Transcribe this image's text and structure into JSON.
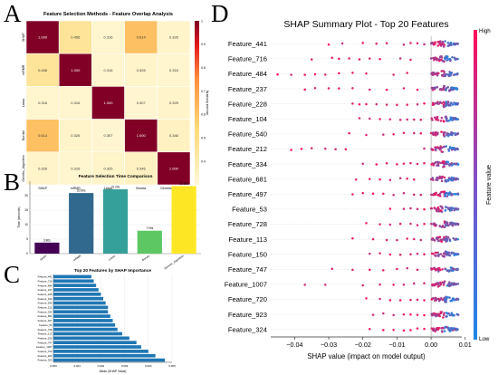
{
  "panel_letters": [
    "A",
    "B",
    "C",
    "D"
  ],
  "chart_data": [
    {
      "panel": "A",
      "type": "heatmap",
      "title": "Feature Selection Methods - Feature Overlap Analysis",
      "labels": [
        "SHAP",
        "mRMR",
        "Lasso",
        "Boruta",
        "Genetic_Algorithm"
      ],
      "values": [
        [
          1.0,
          0.456,
          0.316,
          0.614,
          0.326
        ],
        [
          0.456,
          1.0,
          0.316,
          0.326,
          0.316
        ],
        [
          0.316,
          0.316,
          1.0,
          0.307,
          0.325
        ],
        [
          0.614,
          0.326,
          0.307,
          1.0,
          0.346
        ],
        [
          0.326,
          0.316,
          0.325,
          0.346,
          1.0
        ]
      ],
      "colorbar_label": "Jaccard Similarity",
      "colorbar_ticks": [
        0.4,
        0.5,
        0.6,
        0.7,
        0.8,
        0.9,
        1.0
      ],
      "value_range": [
        0.3,
        1.0
      ]
    },
    {
      "panel": "B",
      "type": "bar",
      "title": "Feature Selection Time Comparison",
      "ylabel": "Time (seconds)",
      "categories": [
        "SHAP",
        "mRMR",
        "Lasso",
        "Boruta",
        "Genetic_Algorithm"
      ],
      "values": [
        3.8,
        20.9,
        22.2,
        7.9,
        23.3
      ],
      "value_labels": [
        "3.80s",
        "20.90s",
        "22.20s",
        "7.90s",
        "23.30s"
      ],
      "ylim": [
        0,
        25
      ],
      "yticks": [
        0,
        5,
        10,
        15,
        20
      ],
      "colors": [
        "#440154",
        "#31688e",
        "#35a09a",
        "#5dc863",
        "#fde725"
      ]
    },
    {
      "panel": "C",
      "type": "bar",
      "orientation": "horizontal",
      "title": "Top 20 Features by SHAP Importance",
      "xlabel": "Mean |SHAP Value|",
      "categories": [
        "Feature_441",
        "Feature_716",
        "Feature_484",
        "Feature_237",
        "Feature_228",
        "Feature_104",
        "Feature_540",
        "Feature_212",
        "Feature_334",
        "Feature_681",
        "Feature_497",
        "Feature_53",
        "Feature_728",
        "Feature_113",
        "Feature_150",
        "Feature_747",
        "Feature_1007",
        "Feature_720",
        "Feature_923",
        "Feature_324"
      ],
      "values": [
        0.0016,
        0.0017,
        0.0018,
        0.0019,
        0.002,
        0.0021,
        0.0022,
        0.0023,
        0.0023,
        0.0024,
        0.0025,
        0.0026,
        0.0027,
        0.0029,
        0.0032,
        0.0035,
        0.0037,
        0.004,
        0.0043,
        0.0047
      ],
      "xlim": [
        0,
        0.005
      ],
      "xticks": [
        0.0,
        0.001,
        0.002,
        0.003,
        0.004,
        0.005
      ],
      "xtick_labels": [
        "0.000",
        "0.001",
        "0.002",
        "0.003",
        "0.004",
        "0.005"
      ],
      "color": "#1f77b4"
    },
    {
      "panel": "D",
      "type": "scatter",
      "title": "SHAP Summary Plot - Top 20 Features",
      "xlabel": "SHAP value (impact on model output)",
      "categories": [
        "Feature_441",
        "Feature_716",
        "Feature_484",
        "Feature_237",
        "Feature_228",
        "Feature_104",
        "Feature_540",
        "Feature_212",
        "Feature_334",
        "Feature_681",
        "Feature_497",
        "Feature_53",
        "Feature_728",
        "Feature_113",
        "Feature_150",
        "Feature_747",
        "Feature_1007",
        "Feature_720",
        "Feature_923",
        "Feature_324"
      ],
      "xlim": [
        -0.047,
        0.009
      ],
      "xticks": [
        -0.04,
        -0.03,
        -0.02,
        -0.01,
        0.0,
        0.01
      ],
      "xtick_labels": [
        "−0.04",
        "−0.03",
        "−0.02",
        "−0.01",
        "0.00",
        "0.01"
      ],
      "colorbar_label": "Feature value",
      "colorbar_high": "High",
      "colorbar_low": "Low",
      "color_low": "#1e88e5",
      "color_high": "#ff0d57",
      "sparse_points": [
        [
          -0.03,
          -0.026,
          -0.02,
          -0.016,
          -0.013,
          -0.008,
          -0.006,
          -0.004,
          -0.002
        ],
        [
          -0.035,
          -0.029,
          -0.027,
          -0.024,
          -0.021,
          -0.018,
          -0.015,
          -0.009,
          -0.006
        ],
        [
          -0.045,
          -0.041,
          -0.037,
          -0.034,
          -0.031,
          -0.027,
          -0.023,
          -0.019,
          -0.011,
          -0.007
        ],
        [
          -0.037,
          -0.034,
          -0.03,
          -0.027,
          -0.023,
          -0.018,
          -0.013,
          -0.008,
          -0.004
        ],
        [
          -0.023,
          -0.021,
          -0.019,
          -0.016,
          -0.013,
          -0.01,
          -0.007,
          -0.004,
          -0.002
        ],
        [
          -0.021,
          -0.018,
          -0.015,
          -0.012,
          -0.009,
          -0.007,
          -0.005,
          -0.003
        ],
        [
          -0.024,
          -0.019,
          -0.014,
          -0.011,
          -0.008,
          -0.005,
          -0.003
        ],
        [
          -0.041,
          -0.038,
          -0.035,
          -0.031,
          -0.028,
          -0.025,
          -0.002
        ],
        [
          -0.02,
          -0.016,
          -0.013,
          -0.01,
          -0.008,
          -0.006,
          -0.004,
          -0.002
        ],
        [
          -0.022,
          -0.018,
          -0.015,
          -0.012,
          -0.009,
          -0.007,
          -0.005
        ],
        [
          -0.023,
          -0.02,
          -0.017,
          -0.014,
          -0.011,
          -0.008,
          -0.005,
          -0.003
        ],
        [
          -0.012,
          -0.008,
          -0.006,
          -0.004,
          -0.002
        ],
        [
          -0.019,
          -0.015,
          -0.012,
          -0.009,
          -0.006,
          -0.004,
          -0.002
        ],
        [
          -0.023,
          -0.017,
          -0.013,
          -0.01,
          -0.007,
          -0.005,
          -0.003
        ],
        [
          -0.018,
          -0.015,
          -0.012,
          -0.009,
          -0.006,
          -0.004,
          -0.002
        ],
        [
          -0.029,
          -0.023,
          -0.018,
          -0.014,
          -0.01,
          -0.007,
          -0.004
        ],
        [
          -0.037,
          -0.031,
          -0.02,
          -0.015,
          -0.011,
          -0.008,
          -0.005,
          -0.002
        ],
        [
          -0.019,
          -0.015,
          -0.012,
          -0.009,
          -0.006,
          -0.004,
          -0.002
        ],
        [
          -0.017,
          -0.014,
          -0.011,
          -0.008,
          -0.006,
          -0.004,
          -0.002
        ],
        [
          -0.018,
          -0.014,
          -0.011,
          -0.008,
          -0.006,
          -0.004,
          -0.002
        ]
      ],
      "cluster_extent": [
        0.0,
        0.008
      ]
    }
  ]
}
